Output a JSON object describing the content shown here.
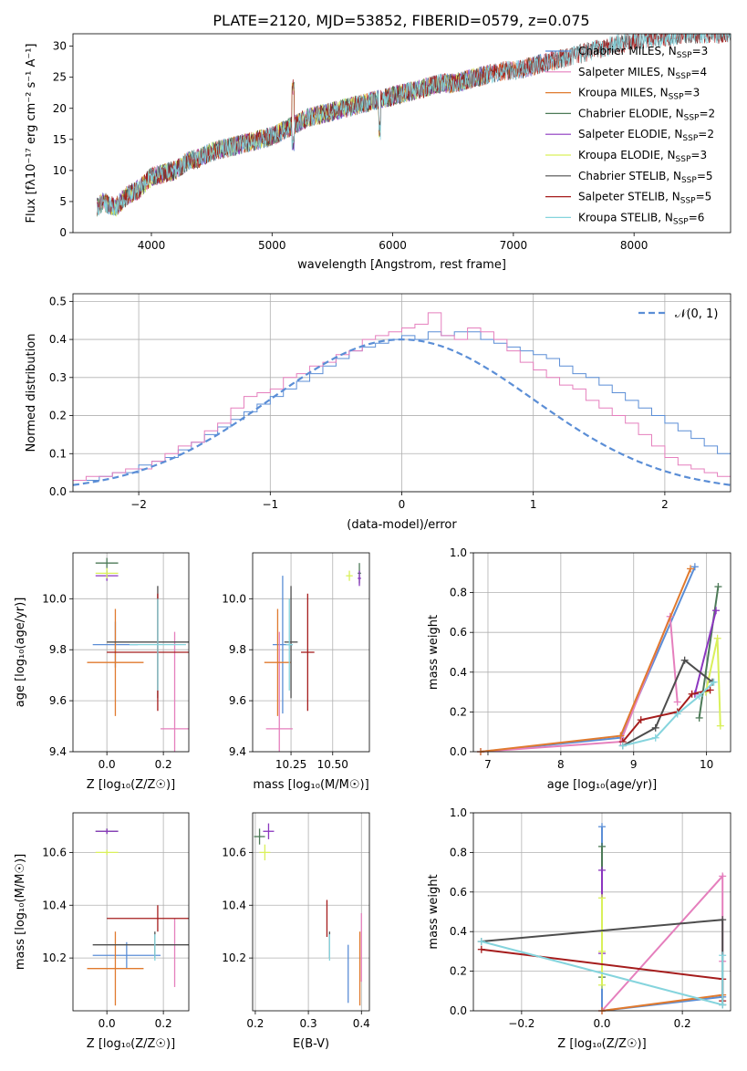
{
  "title": "PLATE=2120, MJD=53852, FIBERID=0579, z=0.075",
  "colors": {
    "chabrier_miles": "#5b8ed6",
    "salpeter_miles": "#e57fbd",
    "kroupa_miles": "#e07a2e",
    "chabrier_elodie": "#4c7a57",
    "salpeter_elodie": "#8b36bf",
    "kroupa_elodie": "#d9f05a",
    "chabrier_stelib": "#4d4d4d",
    "salpeter_stelib": "#a51c1c",
    "kroupa_stelib": "#85d4dd",
    "grid": "#b0b0b0",
    "normal": "#5b8ed6"
  },
  "chart_data": [
    {
      "id": "spectrum",
      "type": "line",
      "xlabel": "wavelength [Angstrom, rest frame]",
      "ylabel": "Flux [f_λ10^-17 erg cm^-2 s^-1 A^-1]",
      "xlim": [
        3350,
        8800
      ],
      "ylim": [
        0,
        32
      ],
      "xticks": [
        4000,
        5000,
        6000,
        7000,
        8000
      ],
      "yticks": [
        0,
        5,
        10,
        15,
        20,
        25,
        30
      ],
      "grid": false,
      "legend_position": "right",
      "spectrum_trend": {
        "x": [
          3550,
          3600,
          3700,
          3800,
          3900,
          4000,
          4100,
          4200,
          4300,
          4400,
          4500,
          4600,
          4700,
          4800,
          4900,
          5000,
          5100,
          5200,
          5300,
          5400,
          5500,
          5600,
          5700,
          5800,
          5900,
          6000,
          6100,
          6200,
          6300,
          6400,
          6500,
          6600,
          6700,
          6800,
          6900,
          7000,
          7100,
          7200,
          7300,
          7400,
          7500,
          7600,
          7700,
          7800,
          7900,
          8000,
          8100,
          8200,
          8300,
          8400
        ],
        "y": [
          4,
          5,
          4,
          6,
          7,
          9,
          9.5,
          10,
          11.5,
          12,
          13,
          13.5,
          14,
          14.5,
          15,
          15.5,
          16.5,
          17.5,
          18.5,
          19,
          19.5,
          20,
          20.5,
          21,
          21.5,
          22,
          22.5,
          23,
          23.5,
          24,
          24,
          24.5,
          25,
          25.5,
          26,
          26,
          26.5,
          27,
          27.5,
          28,
          28.5,
          29,
          29.5,
          30,
          30.5,
          31,
          31,
          31.5,
          31.5,
          32
        ]
      },
      "series": [
        {
          "name": "Chabrier MILES, N_SSP=3",
          "label_main": "Chabrier MILES, N",
          "label_sub": "SSP",
          "label_tail": "=3",
          "color_key": "chabrier_miles",
          "x_end": 7400
        },
        {
          "name": "Salpeter MILES, N_SSP=4",
          "label_main": "Salpeter MILES, N",
          "label_sub": "SSP",
          "label_tail": "=4",
          "color_key": "salpeter_miles",
          "x_end": 7400
        },
        {
          "name": "Kroupa MILES, N_SSP=3",
          "label_main": "Kroupa MILES, N",
          "label_sub": "SSP",
          "label_tail": "=3",
          "color_key": "kroupa_miles",
          "x_end": 7400
        },
        {
          "name": "Chabrier ELODIE, N_SSP=2",
          "label_main": "Chabrier ELODIE, N",
          "label_sub": "SSP",
          "label_tail": "=2",
          "color_key": "chabrier_elodie",
          "x_end": 6800
        },
        {
          "name": "Salpeter ELODIE, N_SSP=2",
          "label_main": "Salpeter ELODIE, N",
          "label_sub": "SSP",
          "label_tail": "=2",
          "color_key": "salpeter_elodie",
          "x_end": 6800
        },
        {
          "name": "Kroupa ELODIE, N_SSP=3",
          "label_main": "Kroupa ELODIE, N",
          "label_sub": "SSP",
          "label_tail": "=3",
          "color_key": "kroupa_elodie",
          "x_end": 6800
        },
        {
          "name": "Chabrier STELIB, N_SSP=5",
          "label_main": "Chabrier STELIB, N",
          "label_sub": "SSP",
          "label_tail": "=5",
          "color_key": "chabrier_stelib",
          "x_end": 8800
        },
        {
          "name": "Salpeter STELIB, N_SSP=5",
          "label_main": "Salpeter STELIB, N",
          "label_sub": "SSP",
          "label_tail": "=5",
          "color_key": "salpeter_stelib",
          "x_end": 8800
        },
        {
          "name": "Kroupa STELIB, N_SSP=6",
          "label_main": "Kroupa STELIB, N",
          "label_sub": "SSP",
          "label_tail": "=6",
          "color_key": "kroupa_stelib",
          "x_end": 8800
        }
      ]
    },
    {
      "id": "residuals",
      "type": "line",
      "xlabel": "(data-model)/error",
      "ylabel": "Normed distribution",
      "xlim": [
        -2.5,
        2.5
      ],
      "ylim": [
        0,
        0.52
      ],
      "xticks": [
        -2,
        -1,
        0,
        1,
        2
      ],
      "yticks": [
        0.0,
        0.1,
        0.2,
        0.3,
        0.4,
        0.5
      ],
      "grid": true,
      "legend": "𝒩(0, 1)",
      "legend_position": "top-right",
      "bin_edges_start": -2.5,
      "bin_width": 0.1,
      "histograms": [
        {
          "color_key": "chabrier_miles",
          "values": [
            0.03,
            0.03,
            0.04,
            0.05,
            0.05,
            0.07,
            0.08,
            0.09,
            0.11,
            0.13,
            0.15,
            0.17,
            0.19,
            0.21,
            0.23,
            0.25,
            0.27,
            0.29,
            0.31,
            0.33,
            0.35,
            0.37,
            0.38,
            0.39,
            0.4,
            0.41,
            0.4,
            0.42,
            0.41,
            0.42,
            0.42,
            0.4,
            0.39,
            0.38,
            0.37,
            0.36,
            0.35,
            0.33,
            0.31,
            0.3,
            0.28,
            0.26,
            0.24,
            0.22,
            0.2,
            0.18,
            0.16,
            0.14,
            0.12,
            0.1
          ]
        },
        {
          "color_key": "salpeter_miles",
          "values": [
            0.03,
            0.04,
            0.04,
            0.05,
            0.06,
            0.06,
            0.08,
            0.1,
            0.12,
            0.13,
            0.16,
            0.18,
            0.22,
            0.25,
            0.26,
            0.27,
            0.3,
            0.31,
            0.33,
            0.34,
            0.36,
            0.37,
            0.4,
            0.41,
            0.42,
            0.43,
            0.44,
            0.47,
            0.41,
            0.4,
            0.43,
            0.42,
            0.4,
            0.37,
            0.34,
            0.32,
            0.3,
            0.28,
            0.27,
            0.24,
            0.22,
            0.2,
            0.18,
            0.15,
            0.12,
            0.09,
            0.07,
            0.06,
            0.05,
            0.04
          ]
        }
      ],
      "normal_curve": {
        "mean": 0,
        "sigma": 1,
        "scale": 0.4
      }
    },
    {
      "id": "age_vs_Z",
      "type": "scatter",
      "xlabel": "Z [log10(Z/Z☉)]",
      "ylabel": "age [log10(age/yr)]",
      "xlim": [
        -0.12,
        0.29
      ],
      "ylim": [
        9.4,
        10.18
      ],
      "xticks": [
        0.0,
        0.2
      ],
      "yticks": [
        9.4,
        9.6,
        9.8,
        10.0
      ],
      "grid": true,
      "points": [
        {
          "color_key": "chabrier_miles",
          "x": 0.03,
          "y": 9.82,
          "xerr": 0.08,
          "yerr": 0.09
        },
        {
          "color_key": "salpeter_miles",
          "x": 0.24,
          "y": 9.49,
          "xerr": 0.05,
          "yerr": 0.38
        },
        {
          "color_key": "kroupa_miles",
          "x": 0.03,
          "y": 9.75,
          "xerr": 0.1,
          "yerr": 0.21
        },
        {
          "color_key": "chabrier_elodie",
          "x": 0.0,
          "y": 10.14,
          "xerr": 0.04,
          "yerr": 0.02
        },
        {
          "color_key": "salpeter_elodie",
          "x": 0.0,
          "y": 10.09,
          "xerr": 0.04,
          "yerr": 0.02
        },
        {
          "color_key": "kroupa_elodie",
          "x": 0.0,
          "y": 10.1,
          "xerr": 0.04,
          "yerr": 0.02
        },
        {
          "color_key": "chabrier_stelib",
          "x": 0.18,
          "y": 9.83,
          "xerr": 0.18,
          "yerr": 0.22
        },
        {
          "color_key": "salpeter_stelib",
          "x": 0.18,
          "y": 9.79,
          "xerr": 0.18,
          "yerr": 0.23
        },
        {
          "color_key": "kroupa_stelib",
          "x": 0.18,
          "y": 9.82,
          "xerr": 0.1,
          "yerr": 0.18
        }
      ]
    },
    {
      "id": "age_vs_mass",
      "type": "scatter",
      "xlabel": "mass [log10(M/M☉)]",
      "ylabel": "",
      "xlim": [
        10.02,
        10.72
      ],
      "ylim": [
        9.4,
        10.18
      ],
      "xticks": [
        10.25,
        10.5
      ],
      "yticks": [
        9.4,
        9.6,
        9.8,
        10.0
      ],
      "grid": true,
      "points": [
        {
          "color_key": "chabrier_miles",
          "x": 10.2,
          "y": 9.82,
          "xerr": 0.06,
          "yerr": 0.27
        },
        {
          "color_key": "salpeter_miles",
          "x": 10.18,
          "y": 9.49,
          "xerr": 0.08,
          "yerr": 0.38
        },
        {
          "color_key": "kroupa_miles",
          "x": 10.17,
          "y": 9.75,
          "xerr": 0.08,
          "yerr": 0.21
        },
        {
          "color_key": "chabrier_elodie",
          "x": 10.66,
          "y": 10.1,
          "xerr": 0.01,
          "yerr": 0.04
        },
        {
          "color_key": "salpeter_elodie",
          "x": 10.66,
          "y": 10.08,
          "xerr": 0.01,
          "yerr": 0.03
        },
        {
          "color_key": "kroupa_elodie",
          "x": 10.6,
          "y": 10.09,
          "xerr": 0.02,
          "yerr": 0.02
        },
        {
          "color_key": "chabrier_stelib",
          "x": 10.25,
          "y": 9.83,
          "xerr": 0.04,
          "yerr": 0.22
        },
        {
          "color_key": "salpeter_stelib",
          "x": 10.35,
          "y": 9.79,
          "xerr": 0.04,
          "yerr": 0.23
        },
        {
          "color_key": "kroupa_stelib",
          "x": 10.24,
          "y": 9.82,
          "xerr": 0.02,
          "yerr": 0.18
        }
      ]
    },
    {
      "id": "mass_weight_vs_age",
      "type": "line",
      "xlabel": "age [log10(age/yr)]",
      "ylabel": "mass weight",
      "xlim": [
        6.8,
        10.33
      ],
      "ylim": [
        0,
        1.0
      ],
      "xticks": [
        7,
        8,
        9,
        10
      ],
      "yticks": [
        0.0,
        0.2,
        0.4,
        0.6,
        0.8,
        1.0
      ],
      "grid": true,
      "series": [
        {
          "color_key": "chabrier_miles",
          "x": [
            6.9,
            8.82,
            9.84
          ],
          "y": [
            0.0,
            0.07,
            0.93
          ]
        },
        {
          "color_key": "salpeter_miles",
          "x": [
            6.9,
            8.82,
            9.5,
            9.6
          ],
          "y": [
            0.0,
            0.05,
            0.68,
            0.25
          ]
        },
        {
          "color_key": "kroupa_miles",
          "x": [
            6.9,
            8.82,
            9.78
          ],
          "y": [
            0.0,
            0.08,
            0.92
          ]
        },
        {
          "color_key": "chabrier_elodie",
          "x": [
            9.9,
            10.16
          ],
          "y": [
            0.17,
            0.83
          ]
        },
        {
          "color_key": "salpeter_elodie",
          "x": [
            9.84,
            10.13
          ],
          "y": [
            0.29,
            0.71
          ]
        },
        {
          "color_key": "kroupa_elodie",
          "x": [
            9.99,
            10.15,
            10.19
          ],
          "y": [
            0.3,
            0.57,
            0.13
          ]
        },
        {
          "color_key": "chabrier_stelib",
          "x": [
            8.85,
            9.3,
            9.7,
            10.08
          ],
          "y": [
            0.03,
            0.12,
            0.46,
            0.35
          ]
        },
        {
          "color_key": "salpeter_stelib",
          "x": [
            8.85,
            9.1,
            9.6,
            9.8,
            10.05
          ],
          "y": [
            0.05,
            0.16,
            0.2,
            0.29,
            0.31
          ]
        },
        {
          "color_key": "kroupa_stelib",
          "x": [
            8.85,
            9.3,
            9.6,
            9.9,
            10.1
          ],
          "y": [
            0.03,
            0.07,
            0.19,
            0.28,
            0.35
          ]
        }
      ]
    },
    {
      "id": "mass_vs_Z",
      "type": "scatter",
      "xlabel": "Z [log10(Z/Z☉)]",
      "ylabel": "mass [log10(M/M☉)]",
      "xlim": [
        -0.12,
        0.29
      ],
      "ylim": [
        10.0,
        10.75
      ],
      "xticks": [
        0.0,
        0.2
      ],
      "yticks": [
        10.2,
        10.4,
        10.6
      ],
      "grid": true,
      "points": [
        {
          "color_key": "chabrier_miles",
          "x": 0.07,
          "y": 10.21,
          "xerr": 0.12,
          "yerr": 0.05
        },
        {
          "color_key": "salpeter_miles",
          "x": 0.24,
          "y": 10.22,
          "xerr": 0.0,
          "yerr": 0.13
        },
        {
          "color_key": "kroupa_miles",
          "x": 0.03,
          "y": 10.16,
          "xerr": 0.1,
          "yerr": 0.14
        },
        {
          "color_key": "chabrier_elodie",
          "x": 0.0,
          "y": 10.68,
          "xerr": 0.04,
          "yerr": 0.01
        },
        {
          "color_key": "salpeter_elodie",
          "x": 0.0,
          "y": 10.68,
          "xerr": 0.04,
          "yerr": 0.01
        },
        {
          "color_key": "kroupa_elodie",
          "x": 0.0,
          "y": 10.6,
          "xerr": 0.04,
          "yerr": 0.01
        },
        {
          "color_key": "chabrier_stelib",
          "x": 0.17,
          "y": 10.25,
          "xerr": 0.22,
          "yerr": 0.05
        },
        {
          "color_key": "salpeter_stelib",
          "x": 0.18,
          "y": 10.35,
          "xerr": 0.18,
          "yerr": 0.05
        },
        {
          "color_key": "kroupa_stelib",
          "x": 0.17,
          "y": 10.24,
          "xerr": 0.0,
          "yerr": 0.05
        }
      ]
    },
    {
      "id": "mass_vs_ebv",
      "type": "scatter",
      "xlabel": "E(B-V)",
      "ylabel": "",
      "xlim": [
        0.195,
        0.415
      ],
      "ylim": [
        10.0,
        10.75
      ],
      "xticks": [
        0.2,
        0.3,
        0.4
      ],
      "yticks": [
        10.2,
        10.4,
        10.6
      ],
      "grid": true,
      "points": [
        {
          "color_key": "chabrier_miles",
          "x": 0.375,
          "y": 10.14,
          "xerr": 0.0,
          "yerr": 0.11
        },
        {
          "color_key": "salpeter_miles",
          "x": 0.4,
          "y": 10.24,
          "xerr": 0.0,
          "yerr": 0.13
        },
        {
          "color_key": "kroupa_miles",
          "x": 0.397,
          "y": 10.16,
          "xerr": 0.0,
          "yerr": 0.14
        },
        {
          "color_key": "chabrier_elodie",
          "x": 0.208,
          "y": 10.66,
          "xerr": 0.0,
          "yerr": 0.03
        },
        {
          "color_key": "salpeter_elodie",
          "x": 0.225,
          "y": 10.68,
          "xerr": 0.0,
          "yerr": 0.03
        },
        {
          "color_key": "kroupa_elodie",
          "x": 0.218,
          "y": 10.6,
          "xerr": 0.0,
          "yerr": 0.03
        },
        {
          "color_key": "chabrier_stelib",
          "x": 0.34,
          "y": 10.25,
          "xerr": 0.0,
          "yerr": 0.05
        },
        {
          "color_key": "salpeter_stelib",
          "x": 0.335,
          "y": 10.35,
          "xerr": 0.0,
          "yerr": 0.07
        },
        {
          "color_key": "kroupa_stelib",
          "x": 0.34,
          "y": 10.24,
          "xerr": 0.0,
          "yerr": 0.05
        }
      ]
    },
    {
      "id": "mass_weight_vs_Z",
      "type": "line",
      "xlabel": "Z [log10(Z/Z☉)]",
      "ylabel": "mass weight",
      "xlim": [
        -0.32,
        0.32
      ],
      "ylim": [
        0,
        1.0
      ],
      "xticks": [
        -0.2,
        0.0,
        0.2
      ],
      "yticks": [
        0.0,
        0.2,
        0.4,
        0.6,
        0.8,
        1.0
      ],
      "grid": true,
      "series": [
        {
          "color_key": "chabrier_miles",
          "x": [
            0.0,
            0.0,
            0.3
          ],
          "y": [
            0.93,
            0.0,
            0.07
          ]
        },
        {
          "color_key": "salpeter_miles",
          "x": [
            0.0,
            0.3,
            0.3
          ],
          "y": [
            0.0,
            0.68,
            0.25
          ]
        },
        {
          "color_key": "kroupa_miles",
          "x": [
            0.0,
            0.3
          ],
          "y": [
            0.0,
            0.08
          ]
        },
        {
          "color_key": "chabrier_elodie",
          "x": [
            0.0,
            0.0
          ],
          "y": [
            0.17,
            0.83
          ]
        },
        {
          "color_key": "salpeter_elodie",
          "x": [
            0.0,
            0.0
          ],
          "y": [
            0.29,
            0.71
          ]
        },
        {
          "color_key": "kroupa_elodie",
          "x": [
            0.0,
            0.0,
            0.0
          ],
          "y": [
            0.13,
            0.3,
            0.57
          ]
        },
        {
          "color_key": "chabrier_stelib",
          "x": [
            -0.3,
            0.3,
            0.3
          ],
          "y": [
            0.35,
            0.46,
            0.03
          ]
        },
        {
          "color_key": "salpeter_stelib",
          "x": [
            -0.3,
            0.3,
            0.3
          ],
          "y": [
            0.31,
            0.16,
            0.05
          ]
        },
        {
          "color_key": "kroupa_stelib",
          "x": [
            -0.3,
            0.3,
            0.3
          ],
          "y": [
            0.35,
            0.03,
            0.28
          ]
        }
      ]
    }
  ]
}
